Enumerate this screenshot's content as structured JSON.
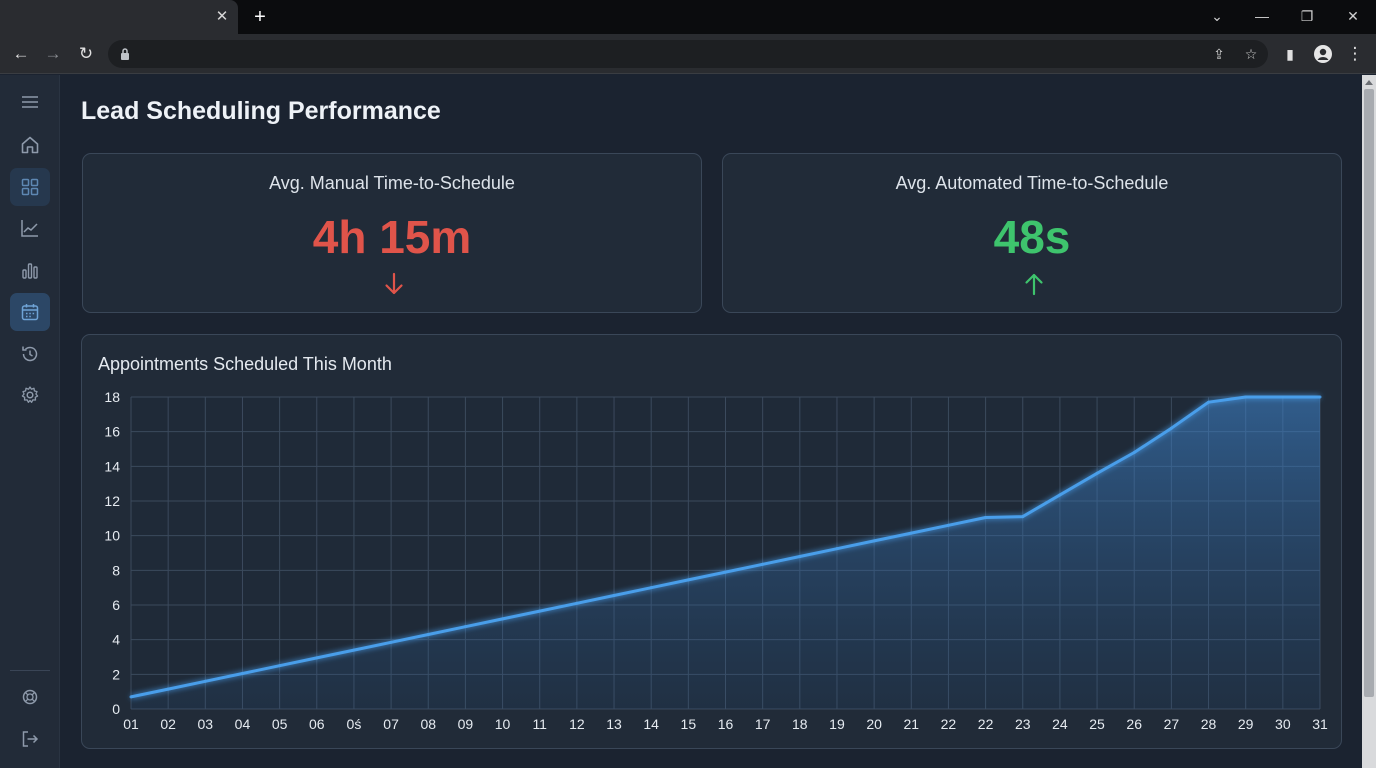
{
  "browser": {
    "tab_close": "✕",
    "new_tab": "+",
    "window_controls": {
      "dropdown": "⌄",
      "minimize": "—",
      "restore": "❐",
      "close": "✕"
    },
    "nav": {
      "back": "←",
      "forward": "→",
      "reload": "↻"
    },
    "omnibox_icons": {
      "share": "⇪",
      "bookmark": "☆"
    },
    "extensions": {
      "sidepanel": "▮",
      "menu": "⋮"
    }
  },
  "sidebar": {
    "items": [
      {
        "name": "menu-icon"
      },
      {
        "name": "home-icon"
      },
      {
        "name": "dashboard-icon"
      },
      {
        "name": "line-chart-icon"
      },
      {
        "name": "bar-chart-icon"
      },
      {
        "name": "calendar-icon"
      },
      {
        "name": "history-icon"
      },
      {
        "name": "settings-icon"
      },
      {
        "name": "support-icon"
      },
      {
        "name": "logout-icon"
      }
    ]
  },
  "page": {
    "title": "Lead Scheduling Performance"
  },
  "kpis": {
    "manual": {
      "label": "Avg. Manual Time-to-Schedule",
      "value": "4h 15m",
      "trend": "down",
      "color": "#e0544a"
    },
    "automated": {
      "label": "Avg. Automated Time-to-Schedule",
      "value": "48s",
      "trend": "up",
      "color": "#3ec46d"
    }
  },
  "colors": {
    "line": "#4a9eea",
    "grid": "#3b4a5d",
    "tick": "#e6ebf1"
  },
  "chart_data": {
    "type": "area",
    "title": "Appointments Scheduled This Month",
    "x_labels": [
      "01",
      "02",
      "03",
      "04",
      "05",
      "06",
      "0ś",
      "07",
      "08",
      "09",
      "10",
      "11",
      "12",
      "13",
      "14",
      "15",
      "16",
      "17",
      "18",
      "19",
      "20",
      "21",
      "22",
      "22",
      "23",
      "24",
      "25",
      "26",
      "27",
      "28",
      "29",
      "30",
      "31"
    ],
    "values": [
      0.7,
      1.15,
      1.6,
      2.05,
      2.5,
      2.95,
      3.4,
      3.85,
      4.3,
      4.75,
      5.2,
      5.65,
      6.1,
      6.55,
      7.0,
      7.45,
      7.9,
      8.35,
      8.8,
      9.25,
      9.7,
      10.15,
      10.6,
      11.05,
      11.1,
      12.35,
      13.6,
      14.8,
      16.2,
      17.7,
      18.0,
      18.0,
      18.0
    ],
    "point_count": 33,
    "y_ticks": [
      0,
      2,
      4,
      6,
      8,
      10,
      12,
      14,
      16,
      18
    ],
    "ylim": [
      0,
      18
    ],
    "xlabel": "",
    "ylabel": "",
    "grid": true
  }
}
